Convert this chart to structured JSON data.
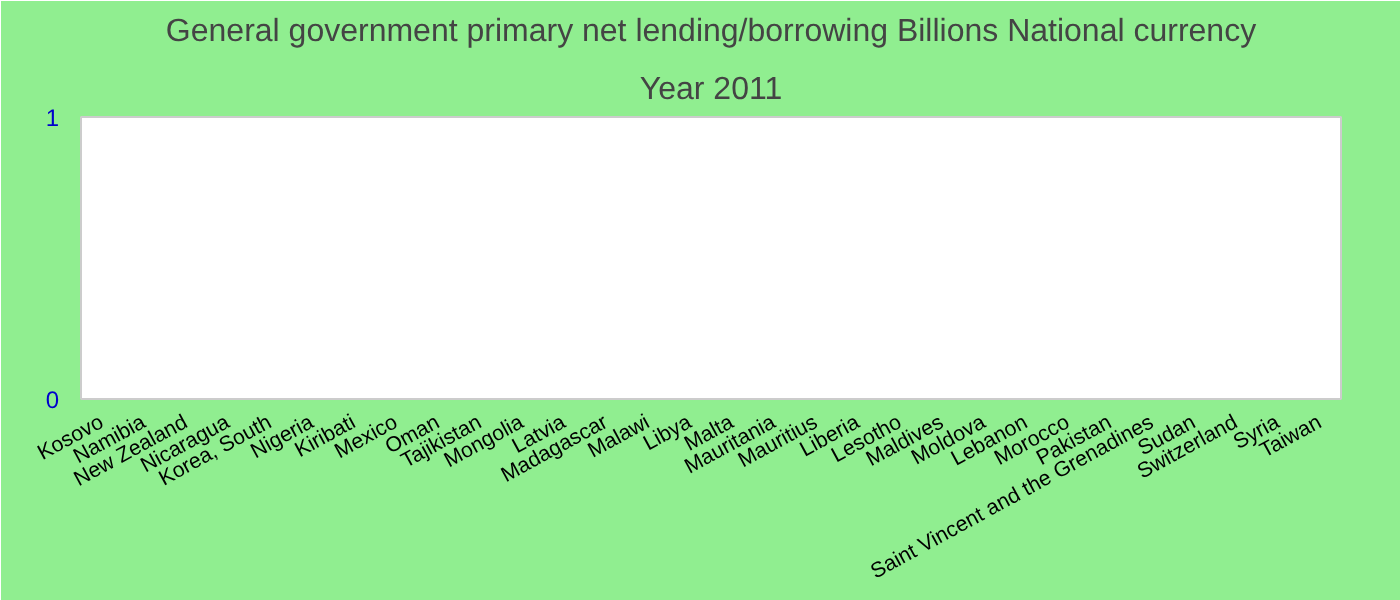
{
  "chart_data": {
    "type": "bar",
    "title": "General government primary net lending/borrowing Billions National currency",
    "subtitle": "Year 2011",
    "categories": [
      "Kosovo",
      "Namibia",
      "New Zealand",
      "Nicaragua",
      "Korea, South",
      "Nigeria",
      "Kiribati",
      "Mexico",
      "Oman",
      "Tajikistan",
      "Mongolia",
      "Latvia",
      "Madagascar",
      "Malawi",
      "Libya",
      "Malta",
      "Mauritania",
      "Mauritius",
      "Liberia",
      "Lesotho",
      "Maldives",
      "Moldova",
      "Lebanon",
      "Morocco",
      "Pakistan",
      "Saint Vincent and the Grenadines",
      "Sudan",
      "Switzerland",
      "Syria",
      "Taiwan"
    ],
    "values": [
      0,
      0,
      0,
      0,
      0,
      0,
      0,
      0,
      0,
      0,
      0,
      0,
      0,
      0,
      0,
      0,
      0,
      0,
      0,
      0,
      0,
      0,
      0,
      0,
      0,
      0,
      0,
      0,
      0,
      0
    ],
    "ylim": [
      0,
      1
    ],
    "yticks": [
      0,
      1
    ],
    "grid": false
  }
}
